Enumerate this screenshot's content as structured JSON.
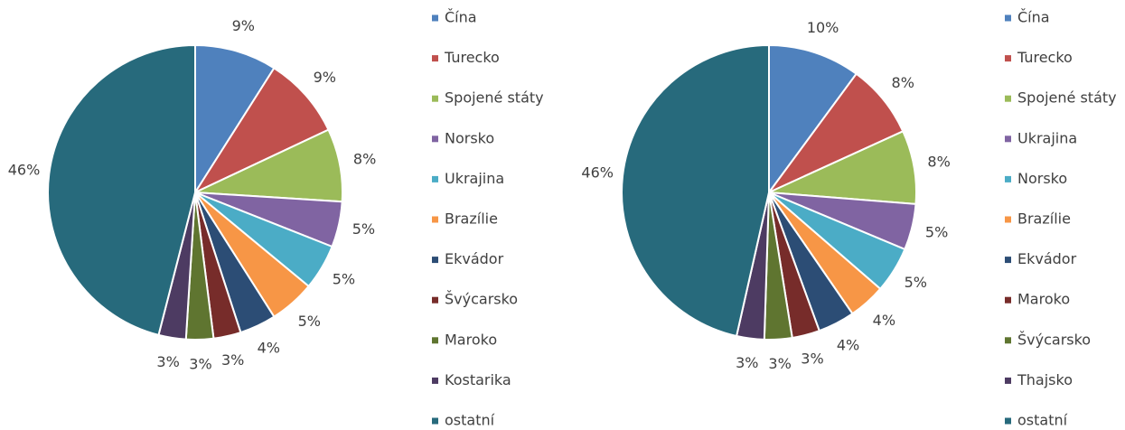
{
  "chart_data": [
    {
      "type": "pie",
      "categories": [
        "Čína",
        "Turecko",
        "Spojené státy",
        "Norsko",
        "Ukrajina",
        "Brazílie",
        "Ekvádor",
        "Švýcarsko",
        "Maroko",
        "Kostarika",
        "ostatní"
      ],
      "values": [
        9,
        9,
        8,
        5,
        5,
        5,
        4,
        3,
        3,
        3,
        46
      ],
      "value_labels": [
        "9%",
        "9%",
        "8%",
        "5%",
        "5%",
        "5%",
        "4%",
        "3%",
        "3%",
        "3%",
        "46%"
      ],
      "colors": [
        "#4f81bd",
        "#c0504d",
        "#9bbb59",
        "#8064a2",
        "#4bacc6",
        "#f79646",
        "#2c4d75",
        "#772c2a",
        "#5f7530",
        "#4d3b62",
        "#276a7c"
      ],
      "legend": "right"
    },
    {
      "type": "pie",
      "categories": [
        "Čína",
        "Turecko",
        "Spojené státy",
        "Ukrajina",
        "Norsko",
        "Brazílie",
        "Ekvádor",
        "Maroko",
        "Švýcarsko",
        "Thajsko",
        "ostatní"
      ],
      "values": [
        10,
        8,
        8,
        5,
        5,
        4,
        4,
        3,
        3,
        3,
        46
      ],
      "value_labels": [
        "10%",
        "8%",
        "8%",
        "5%",
        "5%",
        "4%",
        "4%",
        "3%",
        "3%",
        "3%",
        "46%"
      ],
      "colors": [
        "#4f81bd",
        "#c0504d",
        "#9bbb59",
        "#8064a2",
        "#4bacc6",
        "#f79646",
        "#2c4d75",
        "#772c2a",
        "#5f7530",
        "#4d3b62",
        "#276a7c"
      ],
      "legend": "right"
    }
  ]
}
